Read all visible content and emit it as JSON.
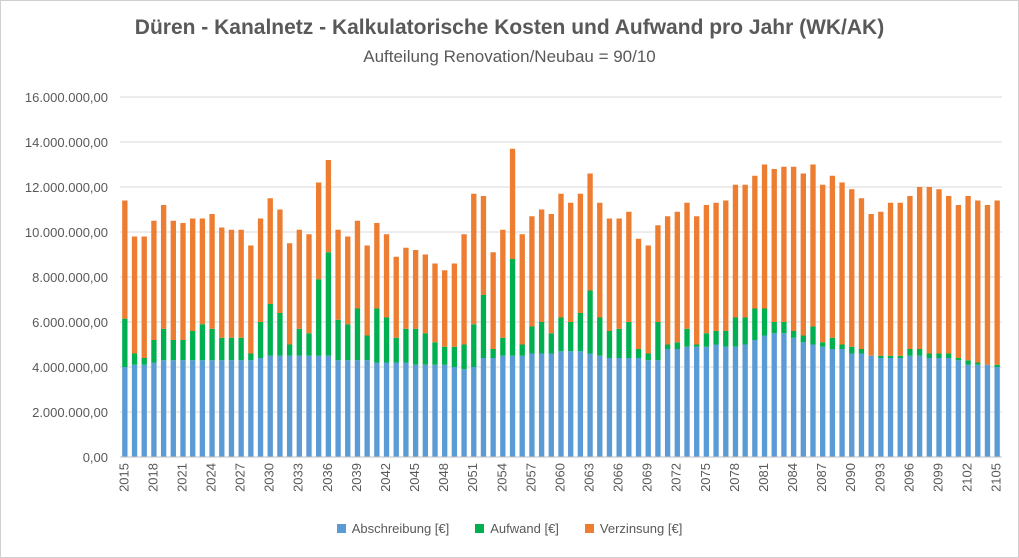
{
  "chart_data": {
    "type": "bar",
    "stacked": true,
    "title": "Düren - Kanalnetz - Kalkulatorische Kosten und Aufwand pro Jahr (WK/AK)",
    "subtitle": "Aufteilung Renovation/Neubau = 90/10",
    "ylim": [
      0,
      16000000
    ],
    "y_ticks": [
      "0,00",
      "2.000.000,00",
      "4.000.000,00",
      "6.000.000,00",
      "8.000.000,00",
      "10.000.000,00",
      "12.000.000,00",
      "14.000.000,00",
      "16.000.000,00"
    ],
    "grid": true,
    "legend_position": "bottom",
    "x_start": 2015,
    "x_end": 2105,
    "x_tick_labels": [
      "2015",
      "2018",
      "2021",
      "2024",
      "2027",
      "2030",
      "2033",
      "2036",
      "2039",
      "2042",
      "2045",
      "2048",
      "2051",
      "2054",
      "2057",
      "2060",
      "2063",
      "2066",
      "2069",
      "2072",
      "2075",
      "2078",
      "2081",
      "2084",
      "2087",
      "2090",
      "2093",
      "2096",
      "2099",
      "2102",
      "2105"
    ],
    "series": [
      {
        "name": "Abschreibung [€]",
        "color": "#5B9BD5",
        "values": [
          4000000,
          4100000,
          4100000,
          4200000,
          4300000,
          4300000,
          4300000,
          4300000,
          4300000,
          4300000,
          4300000,
          4300000,
          4300000,
          4300000,
          4400000,
          4500000,
          4500000,
          4500000,
          4500000,
          4500000,
          4500000,
          4500000,
          4300000,
          4300000,
          4300000,
          4300000,
          4200000,
          4200000,
          4200000,
          4200000,
          4100000,
          4100000,
          4100000,
          4100000,
          4000000,
          3900000,
          4000000,
          4400000,
          4400000,
          4500000,
          4500000,
          4500000,
          4600000,
          4600000,
          4600000,
          4700000,
          4700000,
          4700000,
          4600000,
          4500000,
          4400000,
          4400000,
          4400000,
          4400000,
          4300000,
          4300000,
          4800000,
          4800000,
          4900000,
          4900000,
          4900000,
          5000000,
          4900000,
          4900000,
          5000000,
          5200000,
          5400000,
          5500000,
          5500000,
          5300000,
          5100000,
          5000000,
          4900000,
          4800000,
          4800000,
          4600000,
          4600000,
          4500000,
          4400000,
          4400000,
          4400000,
          4500000,
          4500000,
          4400000,
          4400000,
          4400000,
          4300000,
          4100000,
          4100000,
          4100000,
          4000000
        ],
        "values_note": "approximate readings"
      },
      {
        "name": "Aufwand [€]",
        "color": "#00B050",
        "values": [
          2150000,
          500000,
          300000,
          1000000,
          1400000,
          900000,
          900000,
          1300000,
          1600000,
          1400000,
          1000000,
          1000000,
          1000000,
          300000,
          1600000,
          2300000,
          1900000,
          500000,
          1200000,
          1000000,
          3400000,
          4600000,
          1800000,
          1600000,
          2300000,
          1100000,
          2400000,
          2000000,
          1100000,
          1500000,
          1600000,
          1400000,
          1000000,
          800000,
          900000,
          1100000,
          1900000,
          2800000,
          400000,
          800000,
          4300000,
          500000,
          1200000,
          1400000,
          900000,
          1500000,
          1300000,
          1700000,
          2800000,
          1700000,
          1200000,
          1300000,
          1600000,
          400000,
          300000,
          1700000,
          200000,
          300000,
          800000,
          100000,
          600000,
          600000,
          700000,
          1300000,
          1200000,
          1400000,
          1200000,
          500000,
          500000,
          300000,
          300000,
          800000,
          200000,
          500000,
          200000,
          300000,
          200000,
          0,
          100000,
          100000,
          100000,
          300000,
          300000,
          200000,
          200000,
          200000,
          100000,
          200000,
          100000,
          0,
          100000
        ]
      },
      {
        "name": "Verzinsung [€]",
        "color": "#ED7D31",
        "values": [
          5250000,
          5200000,
          5400000,
          5300000,
          5500000,
          5300000,
          5200000,
          5000000,
          4700000,
          5100000,
          4900000,
          4800000,
          4800000,
          4800000,
          4600000,
          4700000,
          4600000,
          4500000,
          4400000,
          4400000,
          4300000,
          4100000,
          4000000,
          3900000,
          3900000,
          4000000,
          3800000,
          3700000,
          3600000,
          3600000,
          3500000,
          3500000,
          3500000,
          3400000,
          3700000,
          4900000,
          5800000,
          4400000,
          4300000,
          4800000,
          4900000,
          4900000,
          4900000,
          5000000,
          5300000,
          5500000,
          5300000,
          5300000,
          5200000,
          5100000,
          5000000,
          4900000,
          4900000,
          4900000,
          4800000,
          4300000,
          5700000,
          5800000,
          5600000,
          5700000,
          5700000,
          5700000,
          5800000,
          5900000,
          5900000,
          5900000,
          6400000,
          6800000,
          6900000,
          7300000,
          7200000,
          7200000,
          7000000,
          7200000,
          7200000,
          7000000,
          6700000,
          6300000,
          6400000,
          6800000,
          6800000,
          6800000,
          7200000,
          7400000,
          7300000,
          7000000,
          6800000,
          7300000,
          7200000,
          7100000,
          7300000
        ]
      }
    ]
  }
}
